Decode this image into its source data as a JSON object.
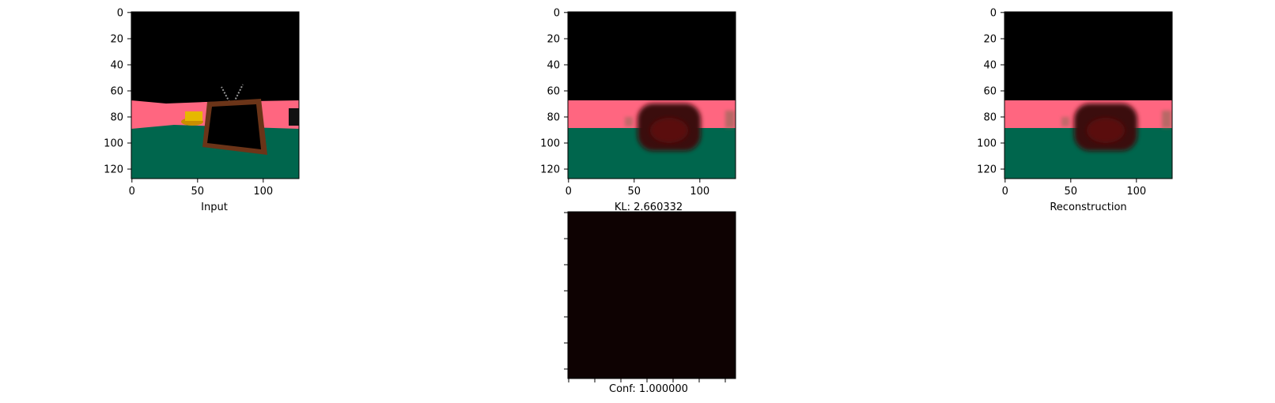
{
  "panels": {
    "input": {
      "caption": "Input",
      "x_ticks": [
        "0",
        "50",
        "100"
      ],
      "y_ticks": [
        "0",
        "20",
        "40",
        "60",
        "80",
        "100",
        "120"
      ],
      "colors": {
        "sky": "#000000",
        "wall": "#ff6680",
        "floor": "#00664d",
        "tv_frame": "#6b3418",
        "tv_screen": "#000000",
        "object": "#e6b800"
      }
    },
    "kl": {
      "caption": "KL: 2.660332",
      "x_ticks": [
        "0",
        "50",
        "100"
      ],
      "y_ticks": [
        "0",
        "20",
        "40",
        "60",
        "80",
        "100",
        "120"
      ],
      "colors": {
        "sky": "#000000",
        "wall": "#ff6680",
        "floor": "#00664d",
        "blob": "#3a0a0a",
        "blob_core": "#5a0f10"
      }
    },
    "reconstruction": {
      "caption": "Reconstruction",
      "x_ticks": [
        "0",
        "50",
        "100"
      ],
      "y_ticks": [
        "0",
        "20",
        "40",
        "60",
        "80",
        "100",
        "120"
      ],
      "colors": {
        "sky": "#000000",
        "wall": "#ff6680",
        "floor": "#00664d",
        "blob": "#3a0a0a",
        "blob_core": "#5a0f10"
      }
    },
    "confidence": {
      "caption": "Conf: 1.000000",
      "fill_color": "#0e0202"
    }
  }
}
